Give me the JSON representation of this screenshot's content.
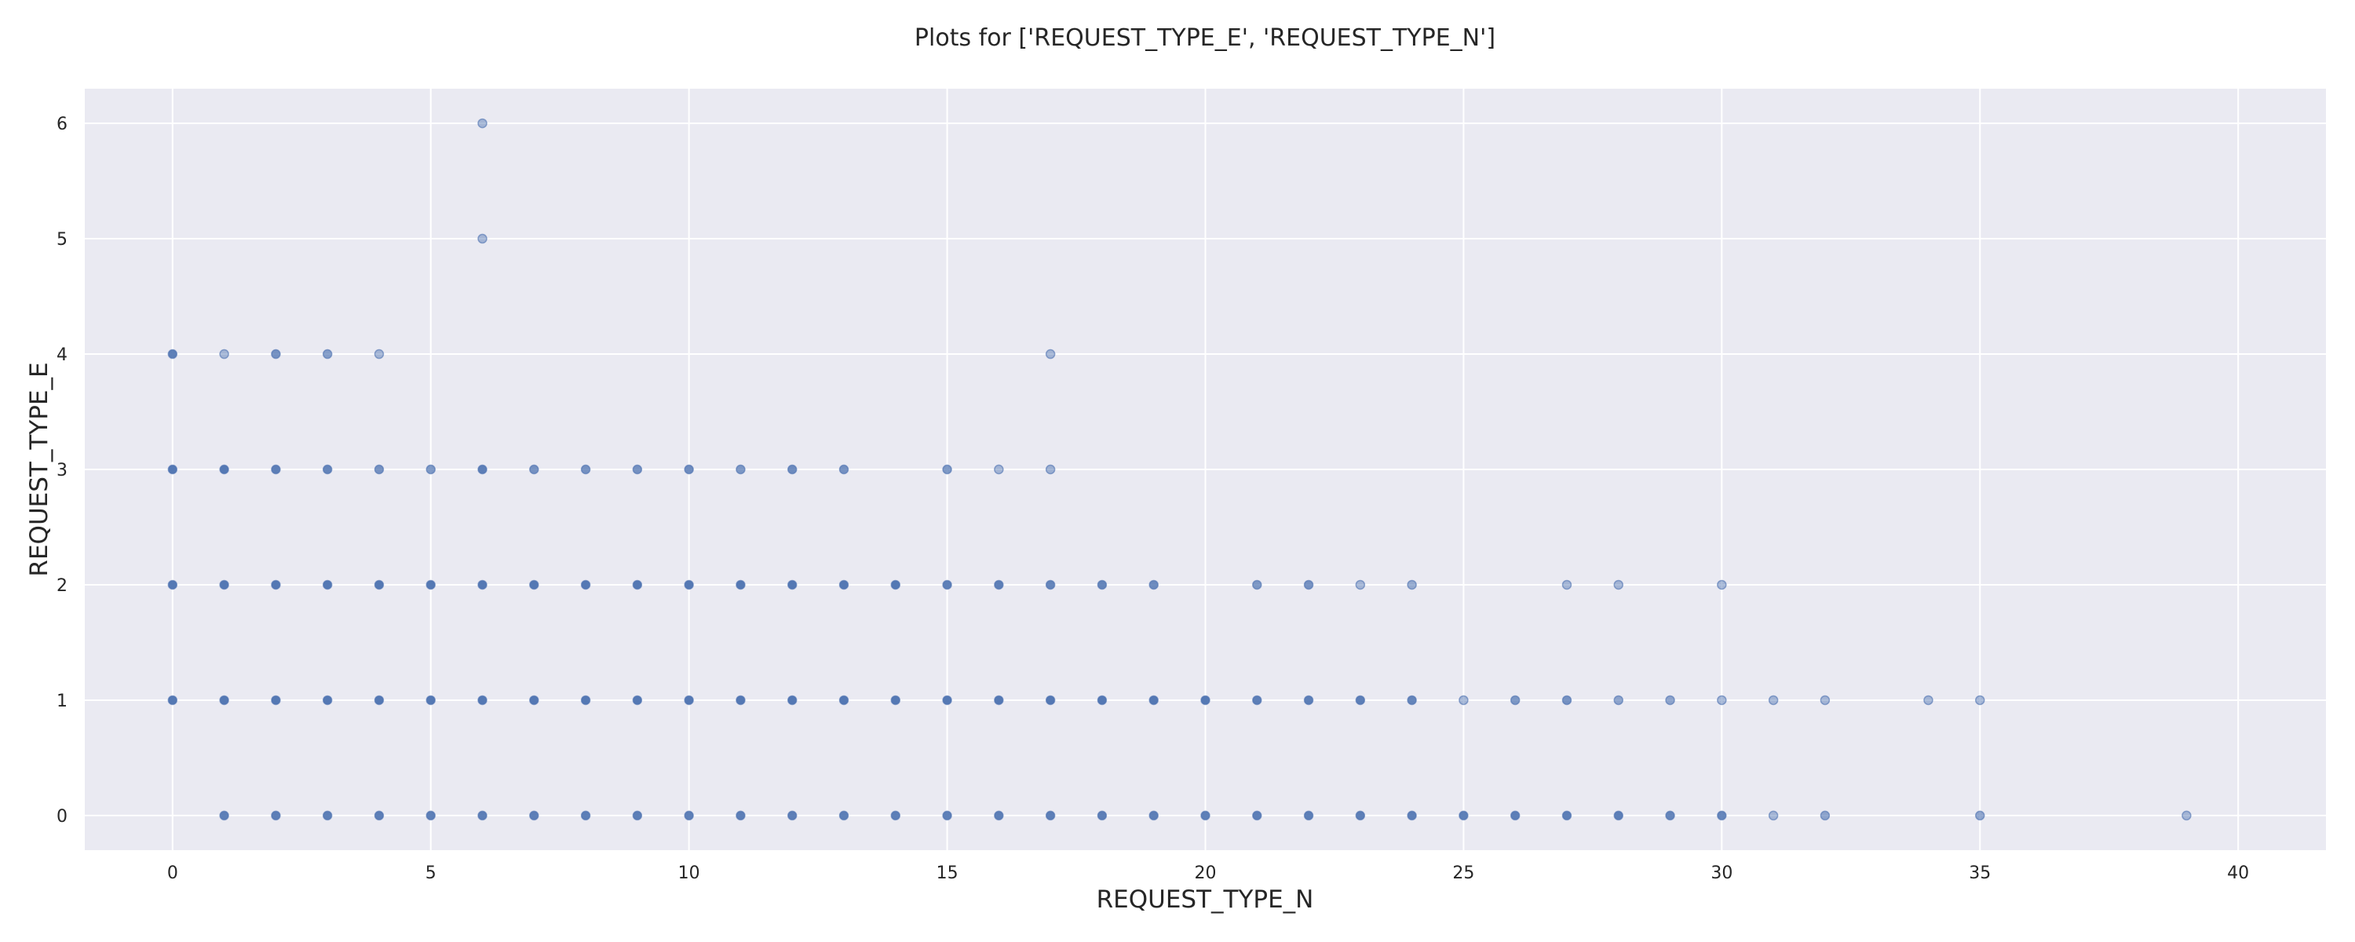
{
  "chart_data": {
    "type": "scatter",
    "title": "Plots for ['REQUEST_TYPE_E', 'REQUEST_TYPE_N']",
    "xlabel": "REQUEST_TYPE_N",
    "ylabel": "REQUEST_TYPE_E",
    "xlim": [
      -1.7,
      41.7
    ],
    "ylim": [
      -0.3,
      6.3
    ],
    "xticks": [
      0,
      5,
      10,
      15,
      20,
      25,
      30,
      35,
      40
    ],
    "yticks": [
      0,
      1,
      2,
      3,
      4,
      5,
      6
    ],
    "grid": true,
    "legend": "none",
    "colors": {
      "background": "#eaeaf2",
      "point": "#4c72b0",
      "grid": "#ffffff"
    },
    "points": [
      {
        "x": 0,
        "y": 1,
        "opacity": 0.95
      },
      {
        "x": 0,
        "y": 2,
        "opacity": 0.95
      },
      {
        "x": 0,
        "y": 3,
        "opacity": 0.95
      },
      {
        "x": 0,
        "y": 4,
        "opacity": 0.9
      },
      {
        "x": 1,
        "y": 0,
        "opacity": 0.9
      },
      {
        "x": 1,
        "y": 1,
        "opacity": 0.95
      },
      {
        "x": 1,
        "y": 2,
        "opacity": 0.95
      },
      {
        "x": 1,
        "y": 3,
        "opacity": 0.95
      },
      {
        "x": 1,
        "y": 4,
        "opacity": 0.45
      },
      {
        "x": 2,
        "y": 0,
        "opacity": 0.9
      },
      {
        "x": 2,
        "y": 1,
        "opacity": 0.95
      },
      {
        "x": 2,
        "y": 2,
        "opacity": 0.95
      },
      {
        "x": 2,
        "y": 3,
        "opacity": 0.9
      },
      {
        "x": 2,
        "y": 4,
        "opacity": 0.75
      },
      {
        "x": 3,
        "y": 0,
        "opacity": 0.9
      },
      {
        "x": 3,
        "y": 1,
        "opacity": 0.95
      },
      {
        "x": 3,
        "y": 2,
        "opacity": 0.95
      },
      {
        "x": 3,
        "y": 3,
        "opacity": 0.85
      },
      {
        "x": 3,
        "y": 4,
        "opacity": 0.65
      },
      {
        "x": 4,
        "y": 0,
        "opacity": 0.9
      },
      {
        "x": 4,
        "y": 1,
        "opacity": 0.95
      },
      {
        "x": 4,
        "y": 2,
        "opacity": 0.95
      },
      {
        "x": 4,
        "y": 3,
        "opacity": 0.75
      },
      {
        "x": 4,
        "y": 4,
        "opacity": 0.45
      },
      {
        "x": 5,
        "y": 0,
        "opacity": 0.9
      },
      {
        "x": 5,
        "y": 1,
        "opacity": 0.95
      },
      {
        "x": 5,
        "y": 2,
        "opacity": 0.95
      },
      {
        "x": 5,
        "y": 3,
        "opacity": 0.7
      },
      {
        "x": 6,
        "y": 0,
        "opacity": 0.9
      },
      {
        "x": 6,
        "y": 1,
        "opacity": 0.95
      },
      {
        "x": 6,
        "y": 2,
        "opacity": 0.95
      },
      {
        "x": 6,
        "y": 3,
        "opacity": 0.9
      },
      {
        "x": 6,
        "y": 5,
        "opacity": 0.45
      },
      {
        "x": 6,
        "y": 6,
        "opacity": 0.45
      },
      {
        "x": 7,
        "y": 0,
        "opacity": 0.9
      },
      {
        "x": 7,
        "y": 1,
        "opacity": 0.95
      },
      {
        "x": 7,
        "y": 2,
        "opacity": 0.95
      },
      {
        "x": 7,
        "y": 3,
        "opacity": 0.75
      },
      {
        "x": 8,
        "y": 0,
        "opacity": 0.9
      },
      {
        "x": 8,
        "y": 1,
        "opacity": 0.95
      },
      {
        "x": 8,
        "y": 2,
        "opacity": 0.95
      },
      {
        "x": 8,
        "y": 3,
        "opacity": 0.75
      },
      {
        "x": 9,
        "y": 0,
        "opacity": 0.9
      },
      {
        "x": 9,
        "y": 1,
        "opacity": 0.95
      },
      {
        "x": 9,
        "y": 2,
        "opacity": 0.95
      },
      {
        "x": 9,
        "y": 3,
        "opacity": 0.75
      },
      {
        "x": 10,
        "y": 0,
        "opacity": 0.9
      },
      {
        "x": 10,
        "y": 1,
        "opacity": 0.95
      },
      {
        "x": 10,
        "y": 2,
        "opacity": 0.95
      },
      {
        "x": 10,
        "y": 3,
        "opacity": 0.8
      },
      {
        "x": 11,
        "y": 0,
        "opacity": 0.9
      },
      {
        "x": 11,
        "y": 1,
        "opacity": 0.95
      },
      {
        "x": 11,
        "y": 2,
        "opacity": 0.95
      },
      {
        "x": 11,
        "y": 3,
        "opacity": 0.7
      },
      {
        "x": 12,
        "y": 0,
        "opacity": 0.9
      },
      {
        "x": 12,
        "y": 1,
        "opacity": 0.95
      },
      {
        "x": 12,
        "y": 2,
        "opacity": 0.95
      },
      {
        "x": 12,
        "y": 3,
        "opacity": 0.8
      },
      {
        "x": 13,
        "y": 0,
        "opacity": 0.9
      },
      {
        "x": 13,
        "y": 1,
        "opacity": 0.95
      },
      {
        "x": 13,
        "y": 2,
        "opacity": 0.95
      },
      {
        "x": 13,
        "y": 3,
        "opacity": 0.75
      },
      {
        "x": 14,
        "y": 0,
        "opacity": 0.9
      },
      {
        "x": 14,
        "y": 1,
        "opacity": 0.95
      },
      {
        "x": 14,
        "y": 2,
        "opacity": 0.95
      },
      {
        "x": 15,
        "y": 0,
        "opacity": 0.9
      },
      {
        "x": 15,
        "y": 1,
        "opacity": 0.95
      },
      {
        "x": 15,
        "y": 2,
        "opacity": 0.9
      },
      {
        "x": 15,
        "y": 3,
        "opacity": 0.7
      },
      {
        "x": 16,
        "y": 0,
        "opacity": 0.9
      },
      {
        "x": 16,
        "y": 1,
        "opacity": 0.95
      },
      {
        "x": 16,
        "y": 2,
        "opacity": 0.9
      },
      {
        "x": 16,
        "y": 3,
        "opacity": 0.45
      },
      {
        "x": 17,
        "y": 0,
        "opacity": 0.9
      },
      {
        "x": 17,
        "y": 1,
        "opacity": 0.95
      },
      {
        "x": 17,
        "y": 2,
        "opacity": 0.85
      },
      {
        "x": 17,
        "y": 3,
        "opacity": 0.5
      },
      {
        "x": 17,
        "y": 4,
        "opacity": 0.45
      },
      {
        "x": 18,
        "y": 0,
        "opacity": 0.9
      },
      {
        "x": 18,
        "y": 1,
        "opacity": 0.95
      },
      {
        "x": 18,
        "y": 2,
        "opacity": 0.85
      },
      {
        "x": 19,
        "y": 0,
        "opacity": 0.9
      },
      {
        "x": 19,
        "y": 1,
        "opacity": 0.95
      },
      {
        "x": 19,
        "y": 2,
        "opacity": 0.8
      },
      {
        "x": 20,
        "y": 0,
        "opacity": 0.9
      },
      {
        "x": 20,
        "y": 1,
        "opacity": 0.95
      },
      {
        "x": 21,
        "y": 0,
        "opacity": 0.9
      },
      {
        "x": 21,
        "y": 1,
        "opacity": 0.9
      },
      {
        "x": 21,
        "y": 2,
        "opacity": 0.7
      },
      {
        "x": 22,
        "y": 0,
        "opacity": 0.9
      },
      {
        "x": 22,
        "y": 1,
        "opacity": 0.9
      },
      {
        "x": 22,
        "y": 2,
        "opacity": 0.75
      },
      {
        "x": 23,
        "y": 0,
        "opacity": 0.9
      },
      {
        "x": 23,
        "y": 1,
        "opacity": 0.9
      },
      {
        "x": 23,
        "y": 2,
        "opacity": 0.45
      },
      {
        "x": 24,
        "y": 0,
        "opacity": 0.9
      },
      {
        "x": 24,
        "y": 1,
        "opacity": 0.85
      },
      {
        "x": 24,
        "y": 2,
        "opacity": 0.55
      },
      {
        "x": 25,
        "y": 0,
        "opacity": 0.9
      },
      {
        "x": 25,
        "y": 1,
        "opacity": 0.45
      },
      {
        "x": 26,
        "y": 0,
        "opacity": 0.9
      },
      {
        "x": 26,
        "y": 1,
        "opacity": 0.7
      },
      {
        "x": 27,
        "y": 0,
        "opacity": 0.9
      },
      {
        "x": 27,
        "y": 1,
        "opacity": 0.75
      },
      {
        "x": 27,
        "y": 2,
        "opacity": 0.45
      },
      {
        "x": 28,
        "y": 0,
        "opacity": 0.9
      },
      {
        "x": 28,
        "y": 1,
        "opacity": 0.6
      },
      {
        "x": 28,
        "y": 2,
        "opacity": 0.45
      },
      {
        "x": 29,
        "y": 0,
        "opacity": 0.85
      },
      {
        "x": 29,
        "y": 1,
        "opacity": 0.6
      },
      {
        "x": 30,
        "y": 0,
        "opacity": 0.85
      },
      {
        "x": 30,
        "y": 1,
        "opacity": 0.45
      },
      {
        "x": 30,
        "y": 2,
        "opacity": 0.45
      },
      {
        "x": 31,
        "y": 0,
        "opacity": 0.45
      },
      {
        "x": 31,
        "y": 1,
        "opacity": 0.45
      },
      {
        "x": 32,
        "y": 0,
        "opacity": 0.6
      },
      {
        "x": 32,
        "y": 1,
        "opacity": 0.45
      },
      {
        "x": 34,
        "y": 1,
        "opacity": 0.45
      },
      {
        "x": 35,
        "y": 0,
        "opacity": 0.6
      },
      {
        "x": 35,
        "y": 1,
        "opacity": 0.45
      },
      {
        "x": 39,
        "y": 0,
        "opacity": 0.45
      }
    ]
  }
}
